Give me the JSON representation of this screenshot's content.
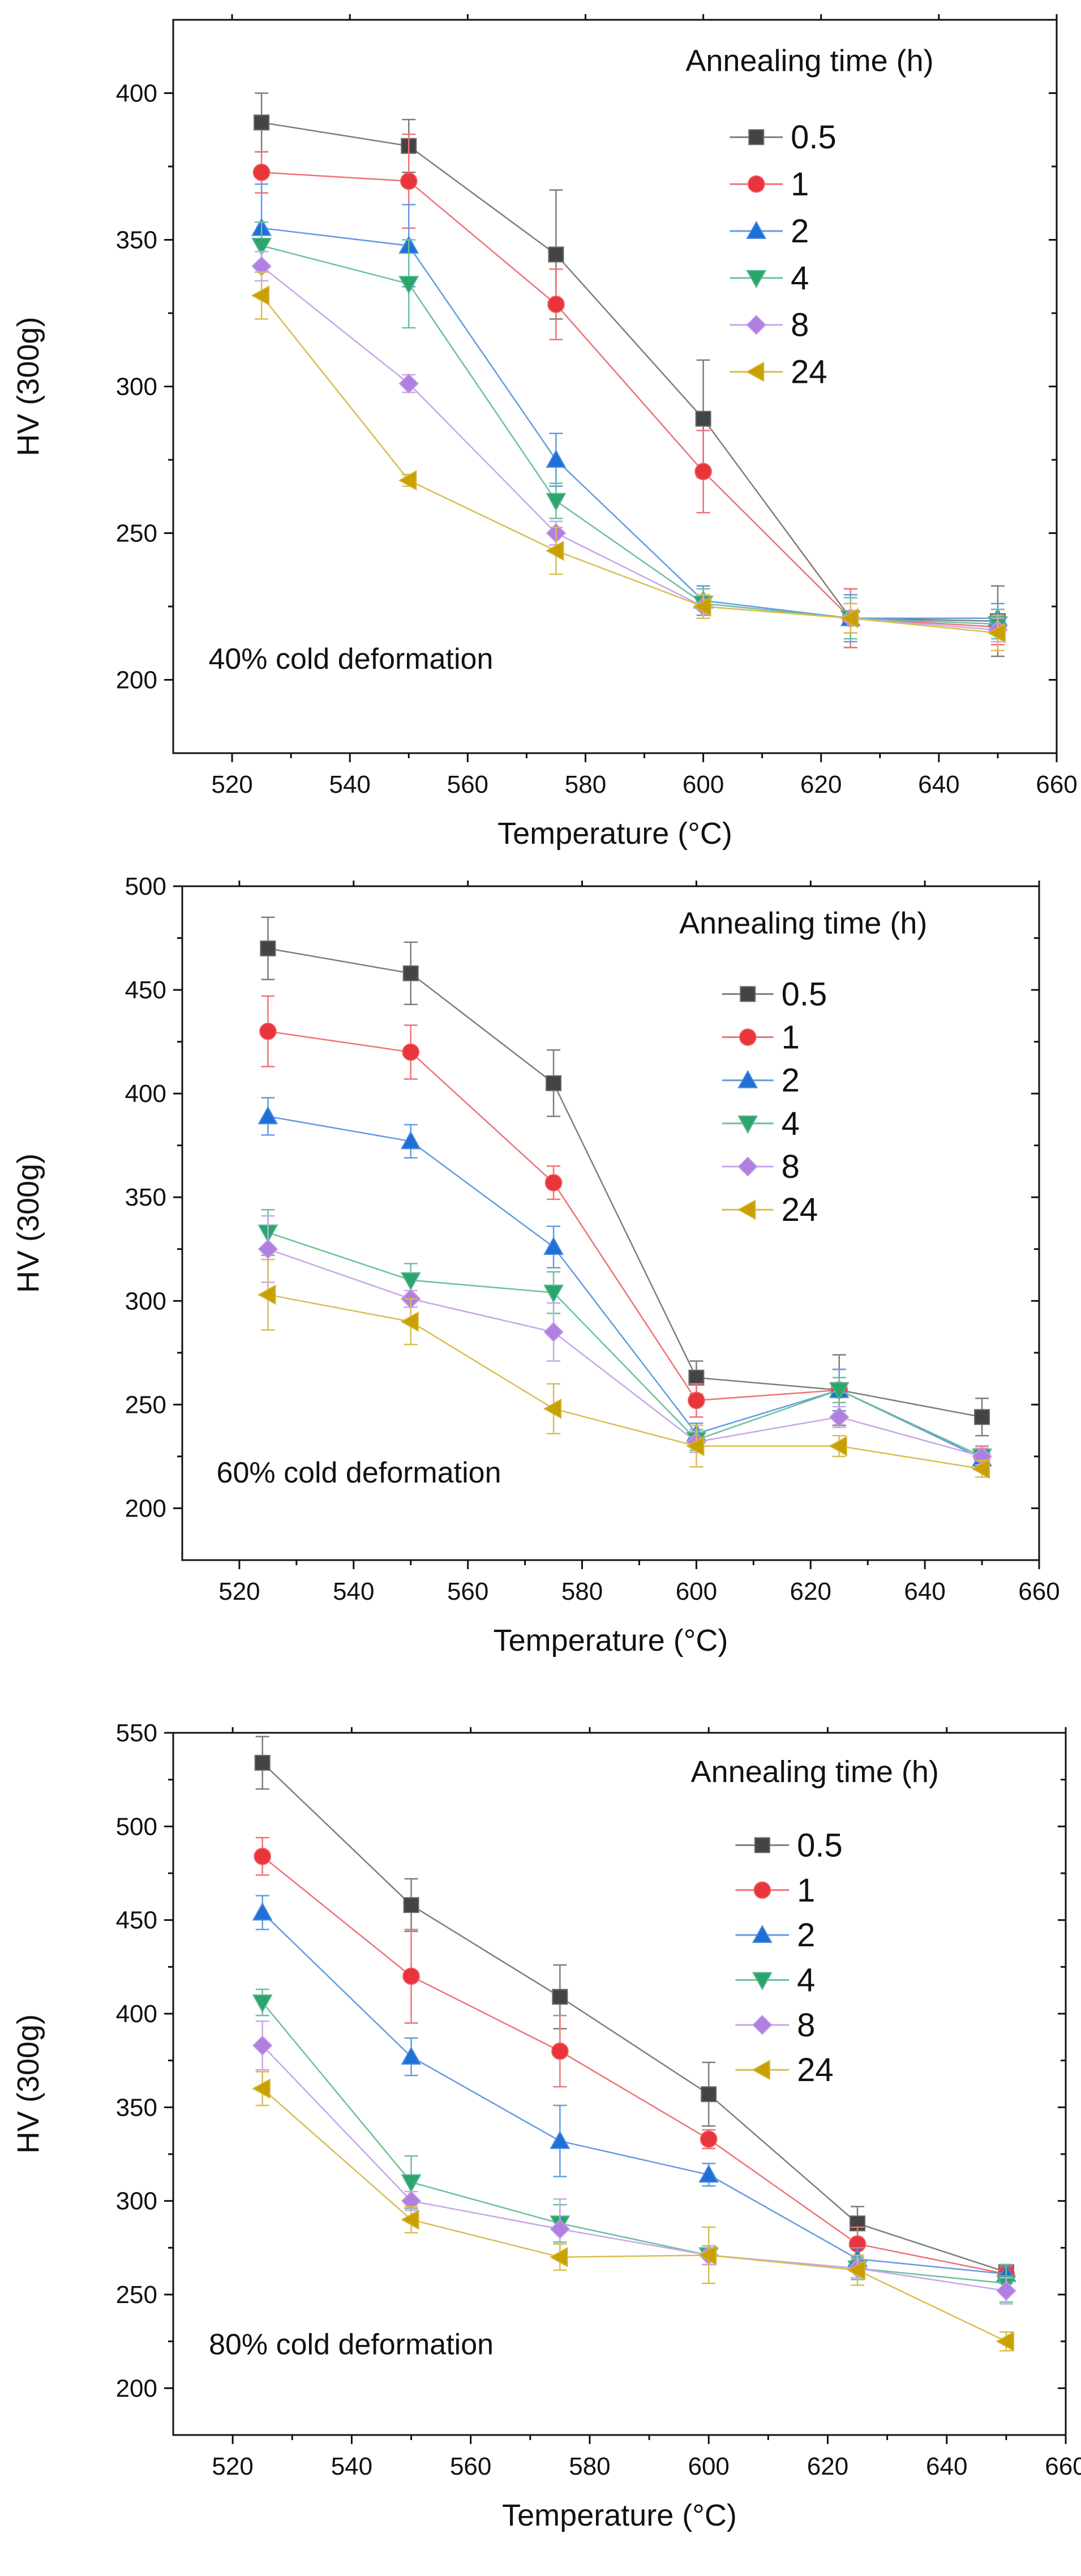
{
  "chart_data": [
    {
      "type": "line",
      "annotation": "40% cold deformation",
      "xlabel": "Temperature (°C)",
      "ylabel": "HV (300g)",
      "xlim": [
        510,
        660
      ],
      "ylim": [
        175,
        425
      ],
      "xticks": [
        520,
        540,
        560,
        580,
        600,
        620,
        640,
        660
      ],
      "yticks": [
        200,
        250,
        300,
        350,
        400
      ],
      "legend_title": "Annealing time (h)",
      "legend_position": "top-right",
      "x": [
        525,
        550,
        575,
        600,
        625,
        650
      ],
      "series": [
        {
          "name": "0.5",
          "marker": "square",
          "color": "#444444",
          "values": [
            390,
            382,
            345,
            289,
            221,
            220
          ],
          "errors": [
            10,
            9,
            22,
            20,
            10,
            12
          ]
        },
        {
          "name": "1",
          "marker": "circle",
          "color": "#e8343a",
          "values": [
            373,
            370,
            328,
            271,
            221,
            218
          ],
          "errors": [
            7,
            16,
            12,
            14,
            10,
            6
          ]
        },
        {
          "name": "2",
          "marker": "triangle-up",
          "color": "#1f6fd6",
          "values": [
            354,
            348,
            275,
            227,
            221,
            221
          ],
          "errors": [
            15,
            14,
            9,
            5,
            8,
            5
          ]
        },
        {
          "name": "4",
          "marker": "triangle-down",
          "color": "#2aa56e",
          "values": [
            348,
            335,
            261,
            226,
            221,
            219
          ],
          "errors": [
            8,
            15,
            6,
            5,
            7,
            5
          ]
        },
        {
          "name": "8",
          "marker": "diamond",
          "color": "#b07fe0",
          "values": [
            341,
            301,
            250,
            225,
            221,
            217
          ],
          "errors": [
            5,
            3,
            4,
            4,
            5,
            4
          ]
        },
        {
          "name": "24",
          "marker": "triangle-left",
          "color": "#c9a000",
          "values": [
            331,
            268,
            244,
            225,
            221,
            216
          ],
          "errors": [
            8,
            2,
            8,
            4,
            5,
            6
          ]
        }
      ]
    },
    {
      "type": "line",
      "annotation": "60% cold deformation",
      "xlabel": "Temperature (°C)",
      "ylabel": "HV (300g)",
      "xlim": [
        510,
        660
      ],
      "ylim": [
        175,
        500
      ],
      "xticks": [
        520,
        540,
        560,
        580,
        600,
        620,
        640,
        660
      ],
      "yticks": [
        200,
        250,
        300,
        350,
        400,
        450,
        500
      ],
      "legend_title": "Annealing time (h)",
      "legend_position": "top-right",
      "x": [
        525,
        550,
        575,
        600,
        625,
        650
      ],
      "series": [
        {
          "name": "0.5",
          "marker": "square",
          "color": "#444444",
          "values": [
            470,
            458,
            405,
            263,
            257,
            244
          ],
          "errors": [
            15,
            15,
            16,
            8,
            17,
            9
          ]
        },
        {
          "name": "1",
          "marker": "circle",
          "color": "#e8343a",
          "values": [
            430,
            420,
            357,
            252,
            257,
            225
          ],
          "errors": [
            17,
            13,
            8,
            8,
            10,
            5
          ]
        },
        {
          "name": "2",
          "marker": "triangle-up",
          "color": "#1f6fd6",
          "values": [
            389,
            377,
            326,
            236,
            257,
            224
          ],
          "errors": [
            9,
            8,
            10,
            5,
            10,
            5
          ]
        },
        {
          "name": "4",
          "marker": "triangle-down",
          "color": "#2aa56e",
          "values": [
            333,
            310,
            304,
            233,
            257,
            225
          ],
          "errors": [
            11,
            8,
            10,
            5,
            6,
            4
          ]
        },
        {
          "name": "8",
          "marker": "diamond",
          "color": "#b07fe0",
          "values": [
            325,
            301,
            285,
            232,
            244,
            225
          ],
          "errors": [
            16,
            4,
            14,
            5,
            5,
            4
          ]
        },
        {
          "name": "24",
          "marker": "triangle-left",
          "color": "#c9a000",
          "values": [
            303,
            290,
            248,
            230,
            230,
            219
          ],
          "errors": [
            17,
            11,
            12,
            10,
            5,
            4
          ]
        }
      ]
    },
    {
      "type": "line",
      "annotation": "80% cold deformation",
      "xlabel": "Temperature (°C)",
      "ylabel": "HV (300g)",
      "xlim": [
        510,
        660
      ],
      "ylim": [
        175,
        550
      ],
      "xticks": [
        520,
        540,
        560,
        580,
        600,
        620,
        640,
        660
      ],
      "yticks": [
        200,
        250,
        300,
        350,
        400,
        450,
        500,
        550
      ],
      "legend_title": "Annealing time (h)",
      "legend_position": "top-right",
      "x": [
        525,
        550,
        575,
        600,
        625,
        650
      ],
      "series": [
        {
          "name": "0.5",
          "marker": "square",
          "color": "#444444",
          "values": [
            534,
            458,
            409,
            357,
            288,
            262
          ],
          "errors": [
            14,
            14,
            17,
            17,
            9,
            4
          ]
        },
        {
          "name": "1",
          "marker": "circle",
          "color": "#e8343a",
          "values": [
            484,
            420,
            380,
            333,
            277,
            261
          ],
          "errors": [
            10,
            25,
            19,
            5,
            9,
            4
          ]
        },
        {
          "name": "2",
          "marker": "triangle-up",
          "color": "#1f6fd6",
          "values": [
            454,
            377,
            332,
            314,
            269,
            261
          ],
          "errors": [
            9,
            10,
            19,
            6,
            6,
            5
          ]
        },
        {
          "name": "4",
          "marker": "triangle-down",
          "color": "#2aa56e",
          "values": [
            406,
            310,
            288,
            271,
            264,
            256
          ],
          "errors": [
            7,
            14,
            10,
            5,
            6,
            10
          ]
        },
        {
          "name": "8",
          "marker": "diamond",
          "color": "#b07fe0",
          "values": [
            383,
            300,
            285,
            271,
            264,
            252
          ],
          "errors": [
            13,
            5,
            16,
            5,
            5,
            7
          ]
        },
        {
          "name": "24",
          "marker": "triangle-left",
          "color": "#c9a000",
          "values": [
            360,
            290,
            270,
            271,
            263,
            225
          ],
          "errors": [
            9,
            7,
            7,
            15,
            8,
            5
          ]
        }
      ]
    }
  ]
}
